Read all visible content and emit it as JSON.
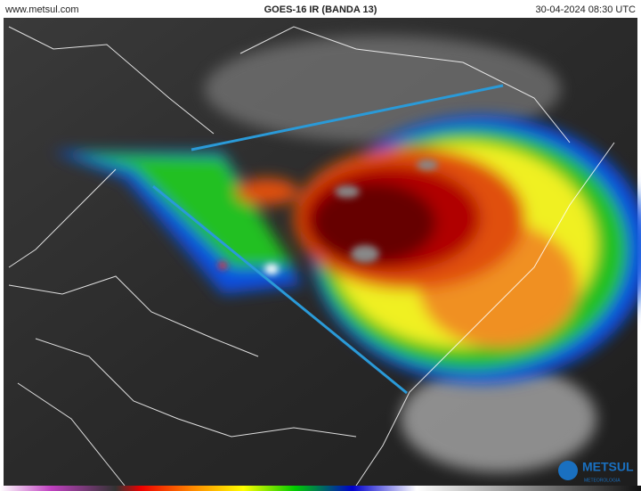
{
  "header": {
    "site": "www.metsul.com",
    "title": "GOES-16 IR (BANDA 13)",
    "timestamp": "30-04-2024 08:30 UTC"
  },
  "logo": {
    "name": "METSUL",
    "subtitle": "METEOROLOGIA"
  }
}
